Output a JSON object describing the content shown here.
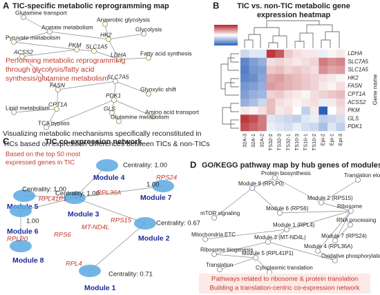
{
  "panel_a": {
    "letter": "A",
    "title": "TIC-specific metabolic reprogramming map",
    "nodes": [
      "Glutamine transport",
      "Anaerobic glycolysis",
      "Acetate metabolism",
      "HK2",
      "Glycolysis",
      "Pyruvate metabolism",
      "PKM",
      "SLC1A5",
      "LDHA",
      "ACSS2",
      "Fatty acid synthesis",
      "SLC7A5",
      "FASN",
      "PDK1",
      "Glyoxylic shift",
      "Amino acid transport",
      "CPT1A",
      "Lipid metabolism",
      "GLS",
      "Glutamine metabolism",
      "TCA bypass"
    ],
    "note": [
      "Performing metabolic reprogramming",
      "through glycolysis/fatty acid",
      "synthesis/glutamine metabolism"
    ],
    "caption": [
      "Visualizing metabolic mechanisms specifically reconstituted in",
      "TICs based on expression differences between TICs & non-TICs"
    ]
  },
  "chart_data": {
    "type": "heatmap",
    "letter": "B",
    "title": [
      "TIC vs. non-TIC metabolic gene",
      "expression heatmap"
    ],
    "y_label": "Gene name",
    "columns": [
      "32A-3",
      "32A-1",
      "32A-2",
      "TS32-2",
      "TS32-3",
      "TS32-1",
      "TS10-3",
      "TS10-1",
      "TS10-2",
      "Epi-2",
      "Epi-1",
      "Epi-3"
    ],
    "rows": [
      "LDHA",
      "SLC7A5",
      "SLC1A5",
      "HK2",
      "FASN",
      "CPT1A",
      "ACSS2",
      "PKM",
      "GLS",
      "PDK1"
    ],
    "values": [
      [
        -0.5,
        -0.3,
        -0.3,
        1.8,
        1.5,
        0.5,
        0.3,
        0.2,
        0.2,
        -0.2,
        0.1,
        0.2
      ],
      [
        -1.5,
        -1.2,
        -1.0,
        0.3,
        0.4,
        0.3,
        0.2,
        0.3,
        0.4,
        1.2,
        1.0,
        1.1
      ],
      [
        -1.6,
        -1.3,
        -1.2,
        0.5,
        0.6,
        0.4,
        0.5,
        0.4,
        0.3,
        1.0,
        0.8,
        0.9
      ],
      [
        -1.5,
        -1.4,
        -1.1,
        0.8,
        0.9,
        0.7,
        0.6,
        0.5,
        0.4,
        0.3,
        0.2,
        0.1
      ],
      [
        -1.3,
        -1.2,
        -1.0,
        0.9,
        0.8,
        0.7,
        0.6,
        0.5,
        0.4,
        0.2,
        0.1,
        0.3
      ],
      [
        -1.2,
        -1.0,
        -0.9,
        0.4,
        0.5,
        0.3,
        0.2,
        0.1,
        0.3,
        0.4,
        0.5,
        0.6
      ],
      [
        -1.0,
        -0.8,
        -0.5,
        0.6,
        0.3,
        0.2,
        0.1,
        0.2,
        0.3,
        -0.2,
        0.2,
        0.4
      ],
      [
        0.2,
        0.1,
        0.3,
        0.6,
        0.2,
        0.3,
        0.0,
        -0.6,
        0.2,
        -2.0,
        0.0,
        0.3
      ],
      [
        1.8,
        1.6,
        1.2,
        -0.3,
        -0.4,
        -0.5,
        -0.6,
        -0.3,
        -0.2,
        -0.6,
        -0.5,
        -0.4
      ],
      [
        1.6,
        1.4,
        1.2,
        -0.2,
        -0.3,
        -0.4,
        -0.2,
        -0.4,
        -0.5,
        -0.8,
        -0.3,
        -0.6
      ]
    ],
    "clim": [
      -2,
      2
    ],
    "colors": [
      "#2c5fb8",
      "#ffffff",
      "#b3232a"
    ]
  },
  "panel_c": {
    "letter": "C",
    "title": "TIC co-expression network",
    "note": [
      "Based on the top 50 most",
      "expressed genes in TIC"
    ],
    "modules": [
      {
        "name": "Module 4",
        "centrality": "Centrality: 1.00"
      },
      {
        "name": "Module 5",
        "centrality": "Centrality: 1.00"
      },
      {
        "name": "Module 3",
        "centrality": "Centrality: 1.00"
      },
      {
        "name": "Module 7",
        "centrality": "1.00"
      },
      {
        "name": "Module 6",
        "centrality": "1.00"
      },
      {
        "name": "Module 2",
        "centrality": "Centrality: 0.67"
      },
      {
        "name": "Module 8"
      },
      {
        "name": "Module 1",
        "centrality": "Centrality: 0.71"
      }
    ],
    "genes": [
      "RPL36A",
      "RPS24",
      "RPL41P1",
      "MT-ND4L",
      "RPS15",
      "RPS6",
      "RPLP0",
      "RPL4"
    ]
  },
  "panel_d": {
    "letter": "D",
    "title": "GO/KEGG pathway map by hub genes of modules",
    "nodes": [
      "Protein biosynthesis",
      "Translation elongation",
      "Module 8 (RPLP0)",
      "Module 2 (RPS15)",
      "mTOR signaling",
      "Module 6 (RPS6)",
      "Ribosome",
      "Module 1 (RPL4)",
      "RNA processing",
      "Mitochondria ETC",
      "Module 3 (MT-ND4L)",
      "Module 7 (RPS24)",
      "Module 4 (RPL36A)",
      "Ribosome biogenesis",
      "Module 5 (RPL41P1)",
      "Oxidative phosphorylation",
      "Translation",
      "Cytoplasmic translation"
    ],
    "note": [
      "Pathways related to ribosome & protein translation",
      "Building a translation-centric co-expression network"
    ]
  }
}
